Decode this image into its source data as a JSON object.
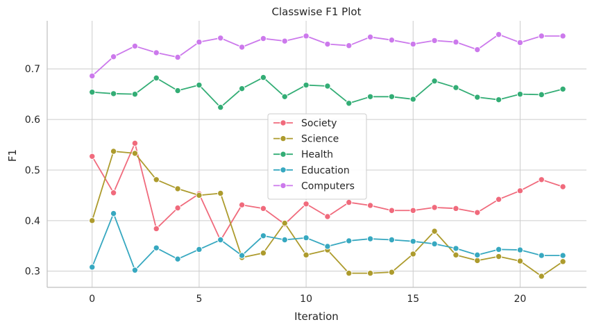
{
  "chart_data": {
    "type": "line",
    "title": "Classwise F1 Plot",
    "xlabel": "Iteration",
    "ylabel": "F1",
    "xlim": [
      -2.1,
      23.1
    ],
    "ylim": [
      0.268,
      0.795
    ],
    "xticks": [
      0,
      5,
      10,
      15,
      20
    ],
    "yticks": [
      0.3,
      0.4,
      0.5,
      0.6,
      0.7
    ],
    "ytick_labels": [
      "0.3",
      "0.4",
      "0.5",
      "0.6",
      "0.7"
    ],
    "grid": true,
    "legend_position": "center",
    "x": [
      0,
      1,
      2,
      3,
      4,
      5,
      6,
      7,
      8,
      9,
      10,
      11,
      12,
      13,
      14,
      15,
      16,
      17,
      18,
      19,
      20,
      21,
      22
    ],
    "series": [
      {
        "name": "Society",
        "color": "#f06a7c",
        "values": [
          0.527,
          0.455,
          0.553,
          0.384,
          0.425,
          0.453,
          0.361,
          0.431,
          0.424,
          0.393,
          0.433,
          0.408,
          0.436,
          0.43,
          0.42,
          0.42,
          0.426,
          0.424,
          0.416,
          0.442,
          0.459,
          0.481,
          0.467
        ]
      },
      {
        "name": "Science",
        "color": "#ad9b2d",
        "values": [
          0.4,
          0.537,
          0.533,
          0.481,
          0.463,
          0.45,
          0.454,
          0.327,
          0.336,
          0.395,
          0.332,
          0.342,
          0.296,
          0.296,
          0.298,
          0.334,
          0.379,
          0.332,
          0.321,
          0.329,
          0.32,
          0.29,
          0.319
        ]
      },
      {
        "name": "Health",
        "color": "#33ad75",
        "values": [
          0.654,
          0.651,
          0.65,
          0.682,
          0.657,
          0.668,
          0.624,
          0.661,
          0.683,
          0.645,
          0.668,
          0.666,
          0.632,
          0.645,
          0.645,
          0.64,
          0.676,
          0.663,
          0.644,
          0.639,
          0.65,
          0.649,
          0.66
        ]
      },
      {
        "name": "Education",
        "color": "#37a8c0",
        "values": [
          0.308,
          0.414,
          0.302,
          0.346,
          0.324,
          0.343,
          0.362,
          0.331,
          0.37,
          0.362,
          0.366,
          0.349,
          0.36,
          0.364,
          0.362,
          0.359,
          0.354,
          0.345,
          0.332,
          0.343,
          0.342,
          0.331,
          0.331
        ]
      },
      {
        "name": "Computers",
        "color": "#cc79ec",
        "values": [
          0.686,
          0.724,
          0.745,
          0.732,
          0.723,
          0.753,
          0.761,
          0.743,
          0.76,
          0.755,
          0.765,
          0.749,
          0.746,
          0.763,
          0.757,
          0.749,
          0.756,
          0.753,
          0.738,
          0.768,
          0.752,
          0.765,
          0.765
        ]
      }
    ]
  }
}
